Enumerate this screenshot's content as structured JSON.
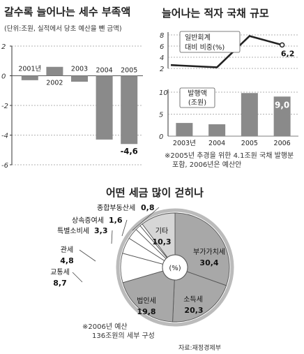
{
  "left_chart": {
    "title": "갈수록 늘어나는 세수 부족액",
    "subtitle": "(단위:조원, 실적에서 당초 예산을 뺀 금액)"
  },
  "right_chart": {
    "title": "늘어나는 적자 국채 규모",
    "line_label_1": "일반회계",
    "line_label_2": "대비 비중(%)",
    "bar_label_1": "발행액",
    "bar_label_2": "(조원)",
    "note_1": "※2005년 추경을 위한 4.1조원 국채 발행분",
    "note_2": "포함, 2006년은 예산안"
  },
  "pie_chart": {
    "title": "어떤 세금 많이 걷히나",
    "center": "(%)",
    "note_1": "※2006년 예산",
    "note_2": "136조원의 세부 구성",
    "source": "자료:재정경제부"
  },
  "chart_data": [
    {
      "type": "bar",
      "categories": [
        "2001년",
        "2002",
        "2003",
        "2004",
        "2005"
      ],
      "values": [
        -0.3,
        0.6,
        -0.4,
        -4.3,
        -4.6
      ],
      "data_labels": [
        "",
        "",
        "",
        "",
        "-4,6"
      ],
      "y_ticks": [
        "2",
        "0",
        "-2",
        "-4",
        "-6"
      ],
      "ylim": [
        -6,
        2
      ]
    },
    {
      "type": "line",
      "categories": [
        "2003년",
        "2004",
        "2005",
        "2006"
      ],
      "values": [
        2.6,
        2.2,
        7.8,
        6.2
      ],
      "data_labels": [
        "",
        "",
        "",
        "6,2"
      ],
      "y_ticks": [
        "8",
        "6",
        "4",
        "2"
      ],
      "ylim": [
        2,
        8
      ]
    },
    {
      "type": "bar",
      "categories": [
        "2003년",
        "2004",
        "2005",
        "2006"
      ],
      "values": [
        3.0,
        2.7,
        9.8,
        9.0
      ],
      "data_labels": [
        "",
        "",
        "",
        "9,0"
      ],
      "y_ticks": [
        "10",
        "5",
        "0"
      ],
      "ylim": [
        0,
        10
      ]
    },
    {
      "type": "pie",
      "slices": [
        {
          "label": "부가가치세",
          "value": 30.4,
          "value_label": "30,4"
        },
        {
          "label": "소득세",
          "value": 20.3,
          "value_label": "20,3"
        },
        {
          "label": "법인세",
          "value": 19.8,
          "value_label": "19,8"
        },
        {
          "label": "교통세",
          "value": 8.7,
          "value_label": "8,7"
        },
        {
          "label": "관세",
          "value": 4.8,
          "value_label": "4,8"
        },
        {
          "label": "특별소비세",
          "value": 3.3,
          "value_label": "3,3"
        },
        {
          "label": "상속증여세",
          "value": 1.6,
          "value_label": "1,6"
        },
        {
          "label": "종합부동산세",
          "value": 0.8,
          "value_label": "0,8"
        },
        {
          "label": "기타",
          "value": 10.3,
          "value_label": "10,3"
        }
      ]
    }
  ],
  "colors": {
    "bar_dark": "#8a8a8a",
    "bar_light": "#aaaaaa",
    "pie_dark": "#a8a8a8",
    "pie_light": "#d6d6d6",
    "pie_white": "#ffffff",
    "line": "#222222"
  }
}
